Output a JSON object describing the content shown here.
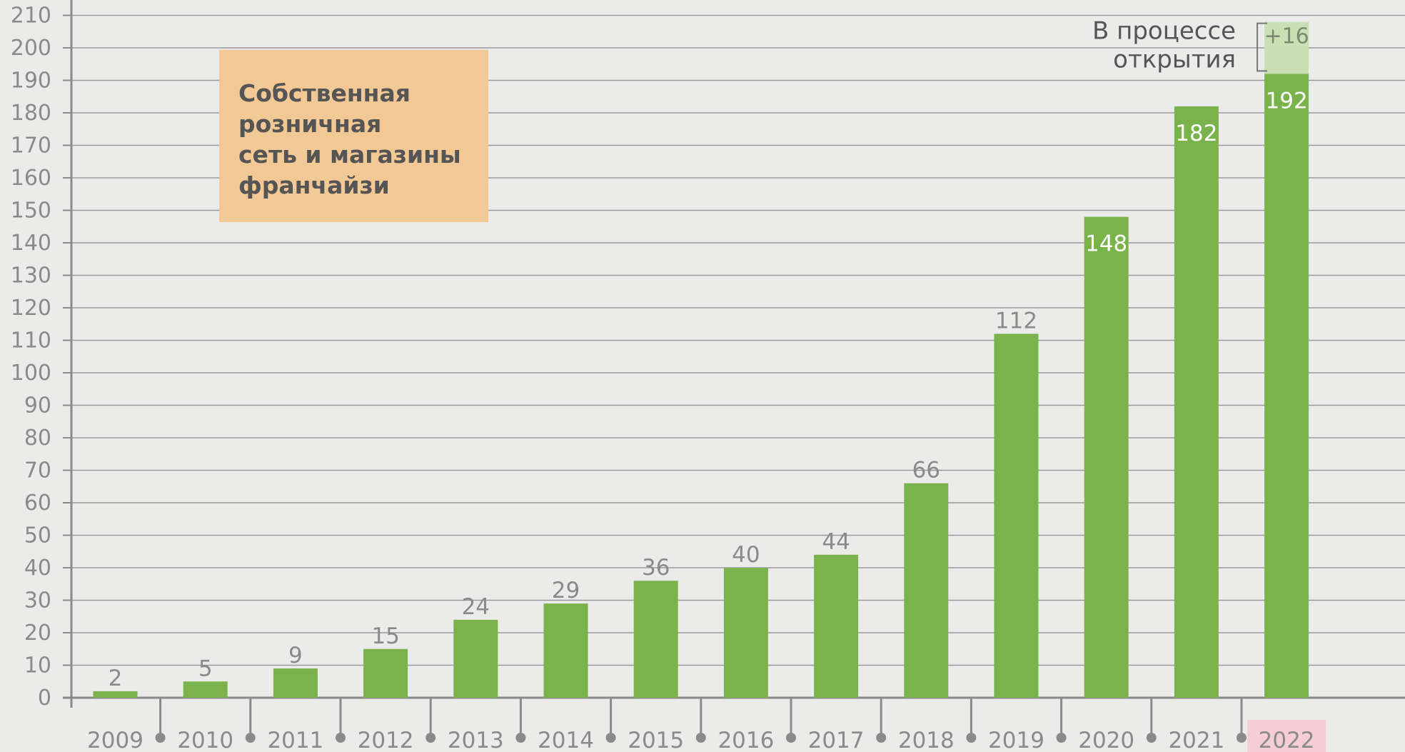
{
  "chart_data": {
    "type": "bar",
    "categories": [
      "2009",
      "2010",
      "2011",
      "2012",
      "2013",
      "2014",
      "2015",
      "2016",
      "2017",
      "2018",
      "2019",
      "2020",
      "2021",
      "2022"
    ],
    "values": [
      2,
      5,
      9,
      15,
      24,
      29,
      36,
      40,
      44,
      66,
      112,
      148,
      182,
      192
    ],
    "pending": {
      "category": "2022",
      "label": "+16",
      "value": 16,
      "note_lines": [
        "В процессе",
        "открытия"
      ]
    },
    "highlight_category": "2022",
    "legend_lines": [
      "Собственная",
      "розничная",
      "сеть и магазины",
      "франчайзи"
    ],
    "yticks": [
      0,
      10,
      20,
      30,
      40,
      50,
      60,
      70,
      80,
      90,
      100,
      110,
      120,
      130,
      140,
      150,
      160,
      170,
      180,
      190,
      200,
      210
    ],
    "ylim": [
      0,
      210
    ],
    "grid": true,
    "colors": {
      "bar": "#7ab34b",
      "pending": "#c9e0b4",
      "legend_box": "#f2c894",
      "highlight": "#f5cdd5",
      "grid": "#9a9a9a",
      "axis": "#8a8a8a"
    }
  }
}
